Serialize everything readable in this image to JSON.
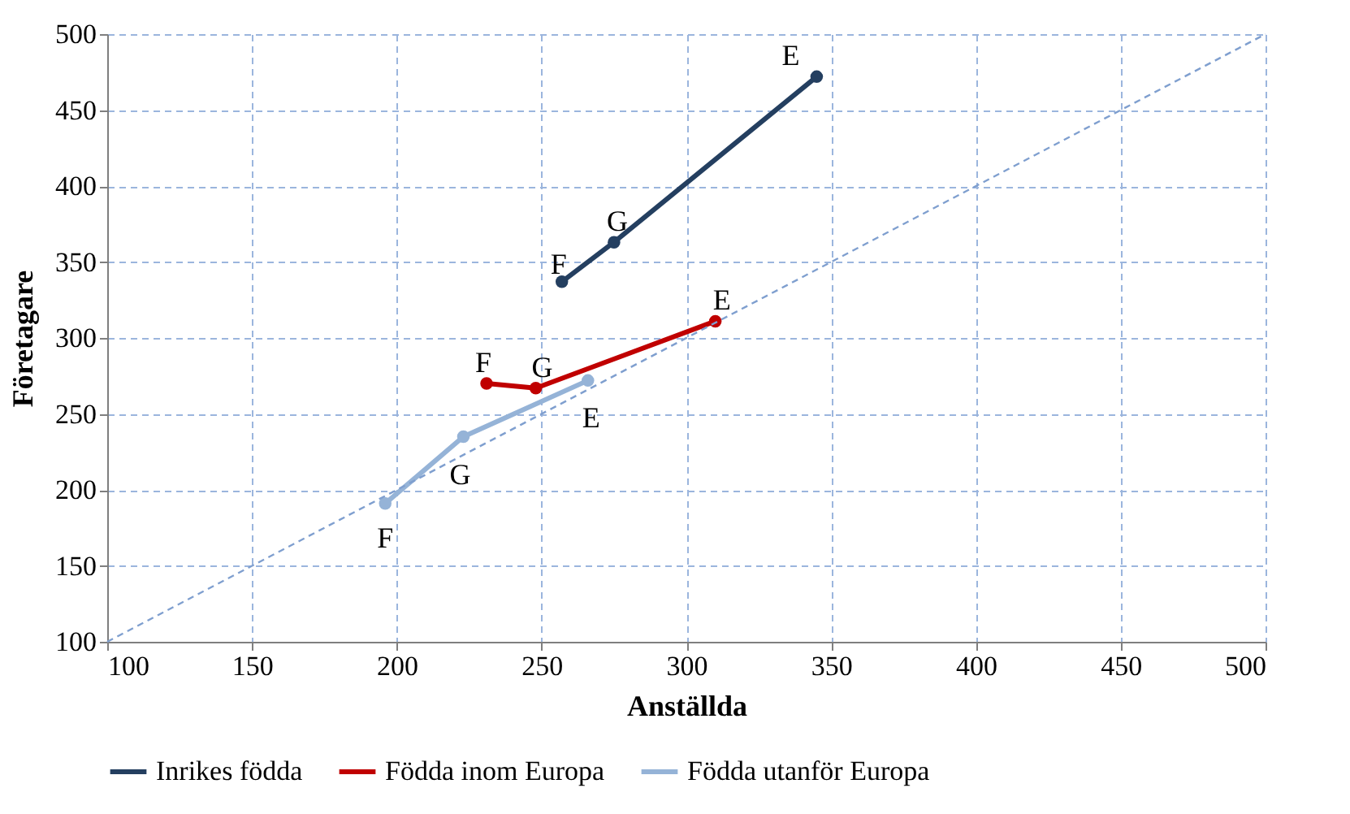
{
  "chart_data": {
    "type": "line",
    "xlabel": "Anställda",
    "ylabel": "Företagare",
    "xlim": [
      100,
      500
    ],
    "xticks": [
      100,
      150,
      200,
      250,
      300,
      350,
      400,
      450,
      500
    ],
    "ylim": [
      100,
      500
    ],
    "yticks": [
      100,
      150,
      200,
      250,
      300,
      350,
      400,
      450,
      500
    ],
    "grid": true,
    "legend": "bottom",
    "marker": "circle",
    "series": [
      {
        "name": "Inrikes födda",
        "color": "#243f60",
        "x": [
          257,
          275,
          345
        ],
        "values": [
          337,
          363,
          472
        ]
      },
      {
        "name": "Födda inom Europa",
        "color": "#c00000",
        "x": [
          231,
          248,
          310
        ],
        "values": [
          270,
          267,
          311
        ]
      },
      {
        "name": "Födda utanför Europa",
        "color": "#95b3d7",
        "x": [
          196,
          223,
          266
        ],
        "values": [
          191,
          235,
          272
        ]
      },
      {
        "color": "#7f9fcf",
        "x": [
          100,
          500
        ],
        "values": [
          100,
          500
        ],
        "line_style": "dashed",
        "marker": "none"
      }
    ],
    "annotations": [
      {
        "text": "F",
        "x": 257,
        "y": 337
      },
      {
        "text": "G",
        "x": 275,
        "y": 363
      },
      {
        "text": "E",
        "x": 345,
        "y": 472
      },
      {
        "text": "F",
        "x": 231,
        "y": 270
      },
      {
        "text": "G",
        "x": 248,
        "y": 267
      },
      {
        "text": "E",
        "x": 310,
        "y": 311
      },
      {
        "text": "F",
        "x": 196,
        "y": 191
      },
      {
        "text": "G",
        "x": 223,
        "y": 235
      },
      {
        "text": "E",
        "x": 266,
        "y": 272
      }
    ]
  }
}
